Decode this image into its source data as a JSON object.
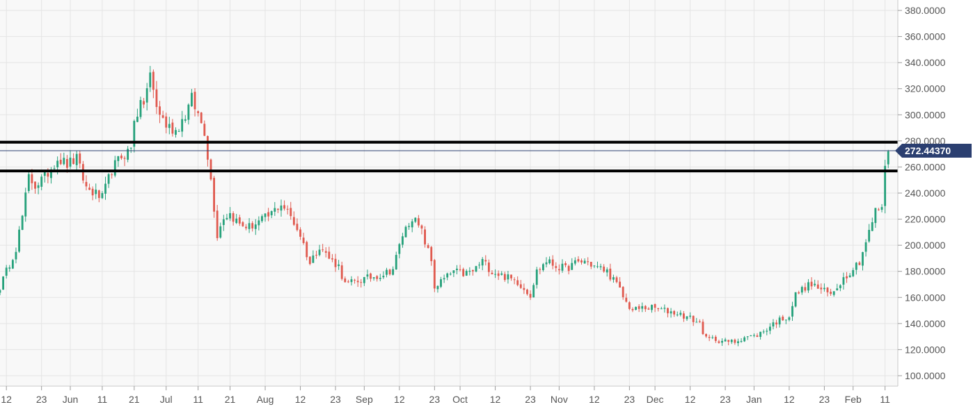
{
  "chart_data": {
    "type": "candlestick",
    "y_axis": {
      "ticks": [
        "100.0000",
        "120.0000",
        "140.0000",
        "160.0000",
        "180.0000",
        "200.0000",
        "220.0000",
        "240.0000",
        "260.0000",
        "280.0000",
        "300.0000",
        "320.0000",
        "340.0000",
        "360.0000",
        "380.0000"
      ],
      "tick_values": [
        100,
        120,
        140,
        160,
        180,
        200,
        220,
        240,
        260,
        280,
        300,
        320,
        340,
        360,
        380
      ],
      "ylim": [
        92,
        388
      ]
    },
    "x_axis": {
      "ticks": [
        {
          "label": "12",
          "day": 0
        },
        {
          "label": "23",
          "day": 11
        },
        {
          "label": "Jun",
          "day": 20
        },
        {
          "label": "11",
          "day": 30
        },
        {
          "label": "21",
          "day": 40
        },
        {
          "label": "Jul",
          "day": 50
        },
        {
          "label": "11",
          "day": 60
        },
        {
          "label": "21",
          "day": 70
        },
        {
          "label": "Aug",
          "day": 81
        },
        {
          "label": "12",
          "day": 92
        },
        {
          "label": "23",
          "day": 103
        },
        {
          "label": "Sep",
          "day": 112
        },
        {
          "label": "12",
          "day": 123
        },
        {
          "label": "23",
          "day": 134
        },
        {
          "label": "Oct",
          "day": 142
        },
        {
          "label": "12",
          "day": 153
        },
        {
          "label": "23",
          "day": 164
        },
        {
          "label": "Nov",
          "day": 173
        },
        {
          "label": "12",
          "day": 184
        },
        {
          "label": "23",
          "day": 195
        },
        {
          "label": "Dec",
          "day": 203
        },
        {
          "label": "12",
          "day": 214
        },
        {
          "label": "23",
          "day": 225
        },
        {
          "label": "Jan",
          "day": 234
        },
        {
          "label": "12",
          "day": 245
        },
        {
          "label": "23",
          "day": 256
        },
        {
          "label": "Feb",
          "day": 265
        },
        {
          "label": "11",
          "day": 275
        }
      ],
      "xlim": [
        -2,
        279
      ]
    },
    "current_price": {
      "label": "272.44370",
      "value": 272.4437
    },
    "horizontal_levels": [
      279,
      257
    ],
    "grid": true,
    "colors": {
      "up": "#26a17b",
      "down": "#e05a4f",
      "price_line": "#2b3f70",
      "level_line": "#000000",
      "price_tag": "#2b3f70"
    },
    "key_closes": [
      [
        -2,
        168
      ],
      [
        3,
        198
      ],
      [
        5,
        222
      ],
      [
        7,
        252
      ],
      [
        9,
        246
      ],
      [
        12,
        252
      ],
      [
        16,
        267
      ],
      [
        19,
        262
      ],
      [
        22,
        266
      ],
      [
        25,
        244
      ],
      [
        30,
        236
      ],
      [
        33,
        258
      ],
      [
        36,
        268
      ],
      [
        39,
        274
      ],
      [
        40,
        298
      ],
      [
        43,
        310
      ],
      [
        45,
        330
      ],
      [
        47,
        306
      ],
      [
        50,
        292
      ],
      [
        53,
        288
      ],
      [
        56,
        300
      ],
      [
        58,
        312
      ],
      [
        60,
        300
      ],
      [
        62,
        288
      ],
      [
        64,
        250
      ],
      [
        66,
        208
      ],
      [
        68,
        222
      ],
      [
        70,
        224
      ],
      [
        73,
        216
      ],
      [
        76,
        214
      ],
      [
        79,
        218
      ],
      [
        82,
        222
      ],
      [
        86,
        232
      ],
      [
        89,
        222
      ],
      [
        92,
        208
      ],
      [
        95,
        186
      ],
      [
        98,
        200
      ],
      [
        101,
        190
      ],
      [
        104,
        184
      ],
      [
        106,
        170
      ],
      [
        109,
        172
      ],
      [
        112,
        174
      ],
      [
        115,
        176
      ],
      [
        118,
        178
      ],
      [
        121,
        182
      ],
      [
        124,
        208
      ],
      [
        127,
        222
      ],
      [
        130,
        210
      ],
      [
        133,
        188
      ],
      [
        134,
        168
      ],
      [
        137,
        174
      ],
      [
        140,
        180
      ],
      [
        143,
        178
      ],
      [
        146,
        180
      ],
      [
        149,
        188
      ],
      [
        152,
        180
      ],
      [
        156,
        176
      ],
      [
        160,
        172
      ],
      [
        164,
        162
      ],
      [
        166,
        180
      ],
      [
        169,
        188
      ],
      [
        172,
        184
      ],
      [
        175,
        182
      ],
      [
        178,
        186
      ],
      [
        181,
        188
      ],
      [
        184,
        184
      ],
      [
        188,
        180
      ],
      [
        191,
        170
      ],
      [
        194,
        156
      ],
      [
        196,
        150
      ],
      [
        199,
        152
      ],
      [
        202,
        152
      ],
      [
        206,
        150
      ],
      [
        210,
        148
      ],
      [
        214,
        144
      ],
      [
        217,
        140
      ],
      [
        219,
        128
      ],
      [
        222,
        128
      ],
      [
        225,
        126
      ],
      [
        228,
        126
      ],
      [
        231,
        130
      ],
      [
        234,
        130
      ],
      [
        237,
        134
      ],
      [
        240,
        140
      ],
      [
        243,
        144
      ],
      [
        245,
        146
      ],
      [
        247,
        162
      ],
      [
        250,
        168
      ],
      [
        252,
        170
      ],
      [
        255,
        166
      ],
      [
        258,
        162
      ],
      [
        261,
        172
      ],
      [
        264,
        180
      ],
      [
        267,
        188
      ],
      [
        270,
        210
      ],
      [
        272,
        226
      ],
      [
        274,
        230
      ],
      [
        275,
        258
      ],
      [
        276,
        272
      ]
    ]
  }
}
